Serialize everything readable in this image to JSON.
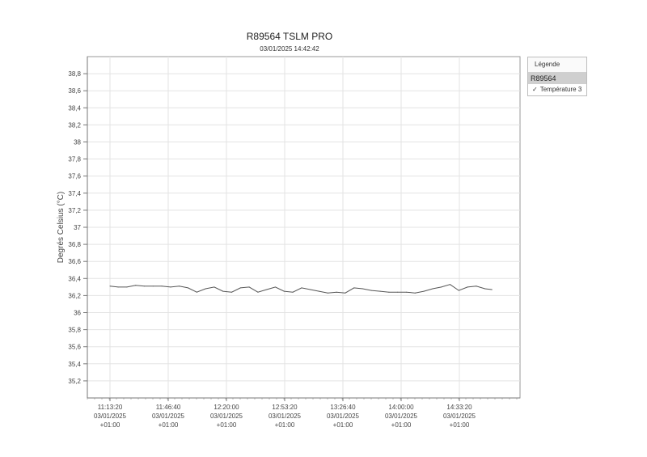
{
  "chart_data": {
    "type": "line",
    "title": "R89564 TSLM PRO",
    "subtitle": "03/01/2025 14:42:42",
    "ylabel": "Degrés Celsius (°C)",
    "xlabel": "",
    "ylim": [
      35.0,
      39.0
    ],
    "yticks": [
      "38,8",
      "38,6",
      "38,4",
      "38,2",
      "38",
      "37,8",
      "37,6",
      "37,4",
      "37,2",
      "37",
      "36,8",
      "36,6",
      "36,4",
      "36,2",
      "36",
      "35,8",
      "35,6",
      "35,4",
      "35,2"
    ],
    "xticks": [
      {
        "time": "11:13:20",
        "date": "03/01/2025",
        "tz": "+01:00"
      },
      {
        "time": "11:46:40",
        "date": "03/01/2025",
        "tz": "+01:00"
      },
      {
        "time": "12:20:00",
        "date": "03/01/2025",
        "tz": "+01:00"
      },
      {
        "time": "12:53:20",
        "date": "03/01/2025",
        "tz": "+01:00"
      },
      {
        "time": "13:26:40",
        "date": "03/01/2025",
        "tz": "+01:00"
      },
      {
        "time": "14:00:00",
        "date": "03/01/2025",
        "tz": "+01:00"
      },
      {
        "time": "14:33:20",
        "date": "03/01/2025",
        "tz": "+01:00"
      }
    ],
    "grid": true,
    "legend_position": "right",
    "series": [
      {
        "name": "Température 3",
        "color": "#555555",
        "x": [
          "11:13:20",
          "11:18:00",
          "11:23:00",
          "11:28:00",
          "11:33:00",
          "11:38:00",
          "11:43:00",
          "11:48:00",
          "11:53:00",
          "11:58:00",
          "12:03:00",
          "12:08:00",
          "12:13:00",
          "12:18:00",
          "12:23:00",
          "12:28:00",
          "12:33:00",
          "12:38:00",
          "12:43:00",
          "12:48:00",
          "12:53:00",
          "12:58:00",
          "13:03:00",
          "13:08:00",
          "13:13:00",
          "13:18:00",
          "13:23:00",
          "13:28:00",
          "13:33:00",
          "13:38:00",
          "13:43:00",
          "13:48:00",
          "13:53:00",
          "13:58:00",
          "14:03:00",
          "14:08:00",
          "14:13:00",
          "14:18:00",
          "14:23:00",
          "14:28:00",
          "14:33:00",
          "14:38:00",
          "14:43:00",
          "14:48:00",
          "14:52:00"
        ],
        "values": [
          36.31,
          36.3,
          36.3,
          36.32,
          36.31,
          36.31,
          36.31,
          36.3,
          36.31,
          36.29,
          36.24,
          36.28,
          36.3,
          36.25,
          36.24,
          36.29,
          36.3,
          36.24,
          36.27,
          36.3,
          36.25,
          36.24,
          36.29,
          36.27,
          36.25,
          36.23,
          36.24,
          36.23,
          36.29,
          36.28,
          36.26,
          36.25,
          36.24,
          36.24,
          36.24,
          36.23,
          36.25,
          36.28,
          36.3,
          36.33,
          36.26,
          36.3,
          36.31,
          36.28,
          36.27
        ]
      }
    ]
  },
  "legend": {
    "header": "Légende",
    "group": "R89564",
    "check": "✓",
    "item": "Température 3"
  }
}
